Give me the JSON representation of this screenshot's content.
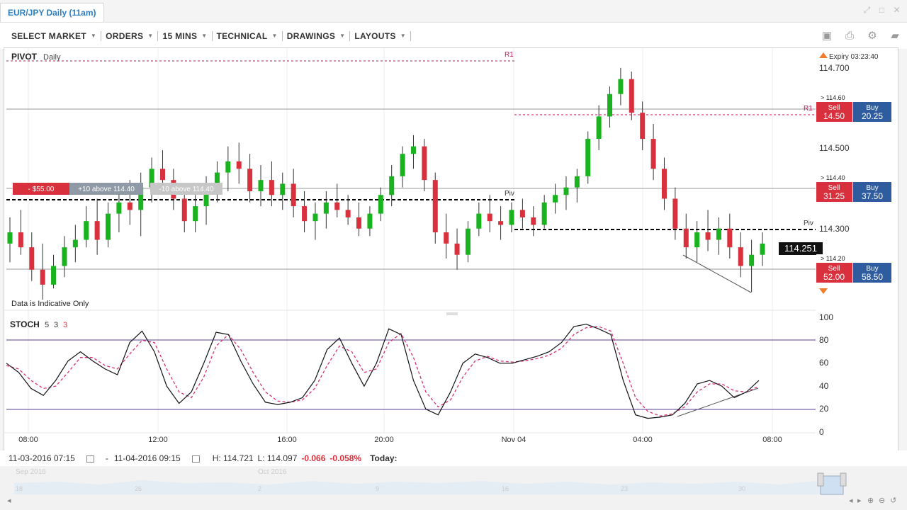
{
  "window": {
    "title": "EUR/JPY Daily (11am)"
  },
  "toolbar": {
    "menus": [
      "SELECT MARKET",
      "ORDERS",
      "15 MINS",
      "TECHNICAL",
      "DRAWINGS",
      "LAYOUTS"
    ]
  },
  "main_chart": {
    "indicator_label": "PIVOT",
    "indicator_period": "Daily",
    "disclaimer": "Data is Indicative Only",
    "expiry": "Expiry 03:23:40",
    "current_price": "114.251",
    "price_axis": [
      "114.700",
      "114.500",
      "114.300"
    ],
    "pivot_labels": {
      "r1": "R1",
      "piv": "Piv"
    },
    "position": {
      "pnl": "- $55.00",
      "level_label_1": "+10 above 114.40",
      "level_label_2": "-10 above 114.40"
    },
    "ladder": [
      {
        "level": "> 114.60",
        "sell_label": "Sell",
        "sell": "14.50",
        "buy_label": "Buy",
        "buy": "20.25"
      },
      {
        "level": "> 114.40",
        "sell_label": "Sell",
        "sell": "31.25",
        "buy_label": "Buy",
        "buy": "37.50"
      },
      {
        "level": "> 114.20",
        "sell_label": "Sell",
        "sell": "52.00",
        "buy_label": "Buy",
        "buy": "58.50"
      }
    ]
  },
  "stoch": {
    "label": "STOCH",
    "params": [
      "5",
      "3",
      "3"
    ],
    "axis": [
      "100",
      "80",
      "60",
      "40",
      "20",
      "0"
    ]
  },
  "time_axis": [
    "08:00",
    "12:00",
    "16:00",
    "20:00",
    "Nov 04",
    "04:00",
    "08:00"
  ],
  "range_bar": {
    "from": "11-03-2016 07:15",
    "dash": "-",
    "to": "11-04-2016 09:15",
    "high": "H: 114.721",
    "low": "L: 114.097",
    "change": "-0.066",
    "change_pct": "-0.058%",
    "today": "Today:"
  },
  "navigator": {
    "months": [
      "Sep 2016",
      "Oct 2016"
    ],
    "days": [
      "18",
      "26",
      "2",
      "9",
      "16",
      "23",
      "30"
    ]
  },
  "colors": {
    "up": "#18b31e",
    "down": "#d9303d",
    "sell": "#d9303d",
    "buy": "#2f5c9e",
    "title": "#2b7fc3"
  },
  "chart_data": {
    "type": "candlestick",
    "candles": [
      [
        114.25,
        114.32,
        114.2,
        114.28
      ],
      [
        114.28,
        114.34,
        114.22,
        114.24
      ],
      [
        114.24,
        114.28,
        114.15,
        114.18
      ],
      [
        114.18,
        114.25,
        114.1,
        114.14
      ],
      [
        114.14,
        114.22,
        114.13,
        114.19
      ],
      [
        114.19,
        114.27,
        114.16,
        114.24
      ],
      [
        114.24,
        114.3,
        114.2,
        114.26
      ],
      [
        114.26,
        114.35,
        114.24,
        114.31
      ],
      [
        114.31,
        114.37,
        114.22,
        114.26
      ],
      [
        114.26,
        114.36,
        114.24,
        114.33
      ],
      [
        114.33,
        114.4,
        114.28,
        114.36
      ],
      [
        114.36,
        114.42,
        114.3,
        114.34
      ],
      [
        114.34,
        114.44,
        114.27,
        114.4
      ],
      [
        114.4,
        114.48,
        114.36,
        114.45
      ],
      [
        114.45,
        114.5,
        114.39,
        114.42
      ],
      [
        114.42,
        114.45,
        114.34,
        114.37
      ],
      [
        114.37,
        114.41,
        114.28,
        114.31
      ],
      [
        114.31,
        114.38,
        114.28,
        114.35
      ],
      [
        114.35,
        114.43,
        114.3,
        114.4
      ],
      [
        114.4,
        114.47,
        114.36,
        114.44
      ],
      [
        114.44,
        114.51,
        114.39,
        114.47
      ],
      [
        114.47,
        114.52,
        114.41,
        114.45
      ],
      [
        114.45,
        114.49,
        114.36,
        114.39
      ],
      [
        114.39,
        114.46,
        114.35,
        114.42
      ],
      [
        114.42,
        114.47,
        114.35,
        114.38
      ],
      [
        114.38,
        114.44,
        114.34,
        114.41
      ],
      [
        114.41,
        114.45,
        114.32,
        114.35
      ],
      [
        114.35,
        114.39,
        114.28,
        114.31
      ],
      [
        114.31,
        114.36,
        114.26,
        114.33
      ],
      [
        114.33,
        114.39,
        114.29,
        114.36
      ],
      [
        114.36,
        114.41,
        114.32,
        114.34
      ],
      [
        114.34,
        114.38,
        114.3,
        114.32
      ],
      [
        114.32,
        114.36,
        114.27,
        114.29
      ],
      [
        114.29,
        114.35,
        114.27,
        114.33
      ],
      [
        114.33,
        114.4,
        114.31,
        114.38
      ],
      [
        114.38,
        114.46,
        114.35,
        114.43
      ],
      [
        114.43,
        114.51,
        114.4,
        114.49
      ],
      [
        114.49,
        114.54,
        114.45,
        114.51
      ],
      [
        114.51,
        114.53,
        114.39,
        114.42
      ],
      [
        114.42,
        114.44,
        114.25,
        114.28
      ],
      [
        114.28,
        114.33,
        114.21,
        114.25
      ],
      [
        114.25,
        114.29,
        114.18,
        114.22
      ],
      [
        114.22,
        114.31,
        114.2,
        114.29
      ],
      [
        114.29,
        114.36,
        114.27,
        114.33
      ],
      [
        114.33,
        114.38,
        114.28,
        114.31
      ],
      [
        114.31,
        114.35,
        114.26,
        114.3
      ],
      [
        114.3,
        114.36,
        114.28,
        114.34
      ],
      [
        114.34,
        114.37,
        114.29,
        114.32
      ],
      [
        114.32,
        114.35,
        114.27,
        114.3
      ],
      [
        114.3,
        114.38,
        114.29,
        114.36
      ],
      [
        114.36,
        114.41,
        114.33,
        114.38
      ],
      [
        114.38,
        114.43,
        114.34,
        114.4
      ],
      [
        114.4,
        114.45,
        114.36,
        114.43
      ],
      [
        114.43,
        114.55,
        114.41,
        114.53
      ],
      [
        114.53,
        114.62,
        114.5,
        114.59
      ],
      [
        114.59,
        114.67,
        114.56,
        114.65
      ],
      [
        114.65,
        114.72,
        114.62,
        114.69
      ],
      [
        114.69,
        114.71,
        114.58,
        114.6
      ],
      [
        114.6,
        114.63,
        114.5,
        114.53
      ],
      [
        114.53,
        114.57,
        114.42,
        114.45
      ],
      [
        114.45,
        114.48,
        114.34,
        114.37
      ],
      [
        114.37,
        114.4,
        114.26,
        114.29
      ],
      [
        114.29,
        114.33,
        114.21,
        114.24
      ],
      [
        114.24,
        114.31,
        114.2,
        114.28
      ],
      [
        114.28,
        114.34,
        114.23,
        114.26
      ],
      [
        114.26,
        114.32,
        114.22,
        114.29
      ],
      [
        114.29,
        114.33,
        114.21,
        114.24
      ],
      [
        114.24,
        114.28,
        114.16,
        114.19
      ],
      [
        114.19,
        114.26,
        114.12,
        114.22
      ],
      [
        114.22,
        114.28,
        114.19,
        114.25
      ]
    ],
    "candle_field_order": [
      "open",
      "high",
      "low",
      "close"
    ],
    "stochastic": {
      "k": [
        60,
        52,
        38,
        32,
        45,
        62,
        70,
        62,
        55,
        50,
        78,
        88,
        70,
        40,
        25,
        35,
        60,
        87,
        85,
        62,
        42,
        26,
        24,
        26,
        30,
        45,
        72,
        82,
        60,
        40,
        60,
        90,
        85,
        45,
        20,
        15,
        35,
        60,
        68,
        65,
        60,
        60,
        63,
        66,
        70,
        78,
        92,
        94,
        90,
        85,
        45,
        15,
        12,
        13,
        15,
        25,
        42,
        45,
        40,
        30,
        35,
        45
      ],
      "d": [
        58,
        55,
        45,
        38,
        40,
        52,
        65,
        65,
        58,
        55,
        68,
        80,
        78,
        55,
        35,
        30,
        48,
        75,
        85,
        72,
        52,
        35,
        27,
        26,
        28,
        38,
        58,
        75,
        70,
        52,
        55,
        78,
        86,
        65,
        35,
        22,
        28,
        48,
        62,
        66,
        62,
        61,
        62,
        64,
        67,
        73,
        85,
        91,
        92,
        88,
        60,
        30,
        18,
        14,
        16,
        22,
        35,
        42,
        42,
        36,
        35,
        40
      ]
    },
    "ylim": [
      114.1,
      114.75
    ],
    "stoch_ylim": [
      0,
      100
    ]
  }
}
